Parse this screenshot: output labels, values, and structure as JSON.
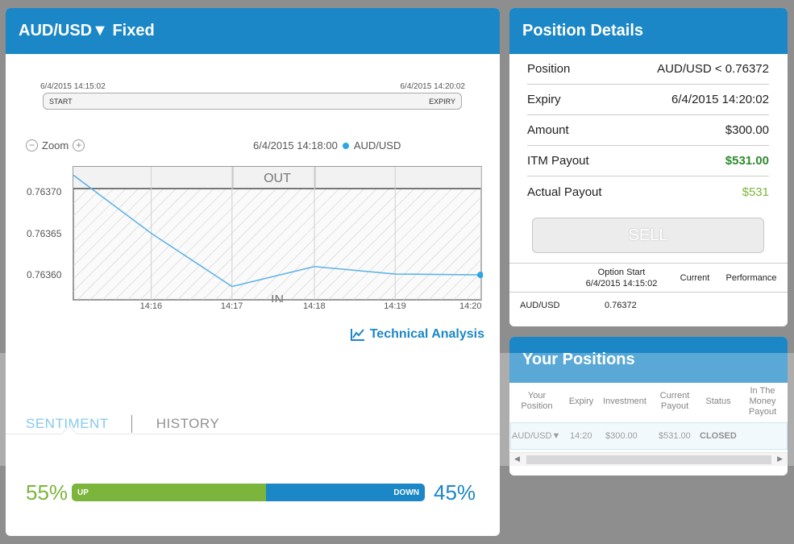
{
  "left": {
    "title": "AUD/USD▼ Fixed",
    "timeline": {
      "start_date": "6/4/2015 14:15:02",
      "expiry_date": "6/4/2015 14:20:02",
      "start_label": "START",
      "expiry_label": "EXPIRY"
    },
    "zoom_label": "Zoom",
    "zoom_out_symbol": "−",
    "zoom_in_symbol": "+",
    "hover_time": "6/4/2015 14:18:00",
    "series_label": "AUD/USD",
    "chart_data": {
      "type": "line",
      "zones": {
        "upper": "OUT",
        "lower": "IN"
      },
      "x": [
        "14:15:02",
        "14:16",
        "14:17",
        "14:18",
        "14:19",
        "14:20"
      ],
      "x_ticks": [
        "14:16",
        "14:17",
        "14:18",
        "14:19",
        "14:20"
      ],
      "y_ticks": [
        "0.76370",
        "0.76365",
        "0.76360"
      ],
      "ylim": [
        0.76357,
        0.76373
      ],
      "strike": 0.76372,
      "series": [
        {
          "name": "AUD/USD",
          "values": [
            0.76372,
            0.76365,
            0.763586,
            0.76361,
            0.763601,
            0.7636
          ]
        }
      ]
    },
    "technical_analysis": "Technical Analysis",
    "tabs": {
      "sentiment": "SENTIMENT",
      "history": "HISTORY"
    },
    "sentiment": {
      "up_pct": "55%",
      "down_pct": "45%",
      "up_label": "UP",
      "down_label": "DOWN",
      "up_fraction": 0.55
    }
  },
  "position": {
    "title": "Position Details",
    "rows": [
      {
        "label": "Position",
        "value": "AUD/USD < 0.76372"
      },
      {
        "label": "Expiry",
        "value": "6/4/2015 14:20:02"
      },
      {
        "label": "Amount",
        "value": "$300.00"
      },
      {
        "label": "ITM Payout",
        "value": "$531.00"
      },
      {
        "label": "Actual Payout",
        "value": "$531"
      }
    ],
    "sell": "SELL",
    "table": {
      "option_start_label": "Option Start",
      "option_start_date": "6/4/2015 14:15:02",
      "current": "Current",
      "performance": "Performance",
      "asset": "AUD/USD",
      "rate": "0.76372"
    }
  },
  "yours": {
    "title": "Your Positions",
    "columns": [
      "Your Position",
      "Expiry",
      "Investment",
      "Current Payout",
      "Status",
      "In The Money Payout"
    ],
    "row": {
      "asset": "AUD/USD▼",
      "expiry": "14:20",
      "investment": "$300.00",
      "payout": "$531.00",
      "status": "CLOSED"
    },
    "scroll_left": "◀",
    "scroll_right": "▶"
  }
}
